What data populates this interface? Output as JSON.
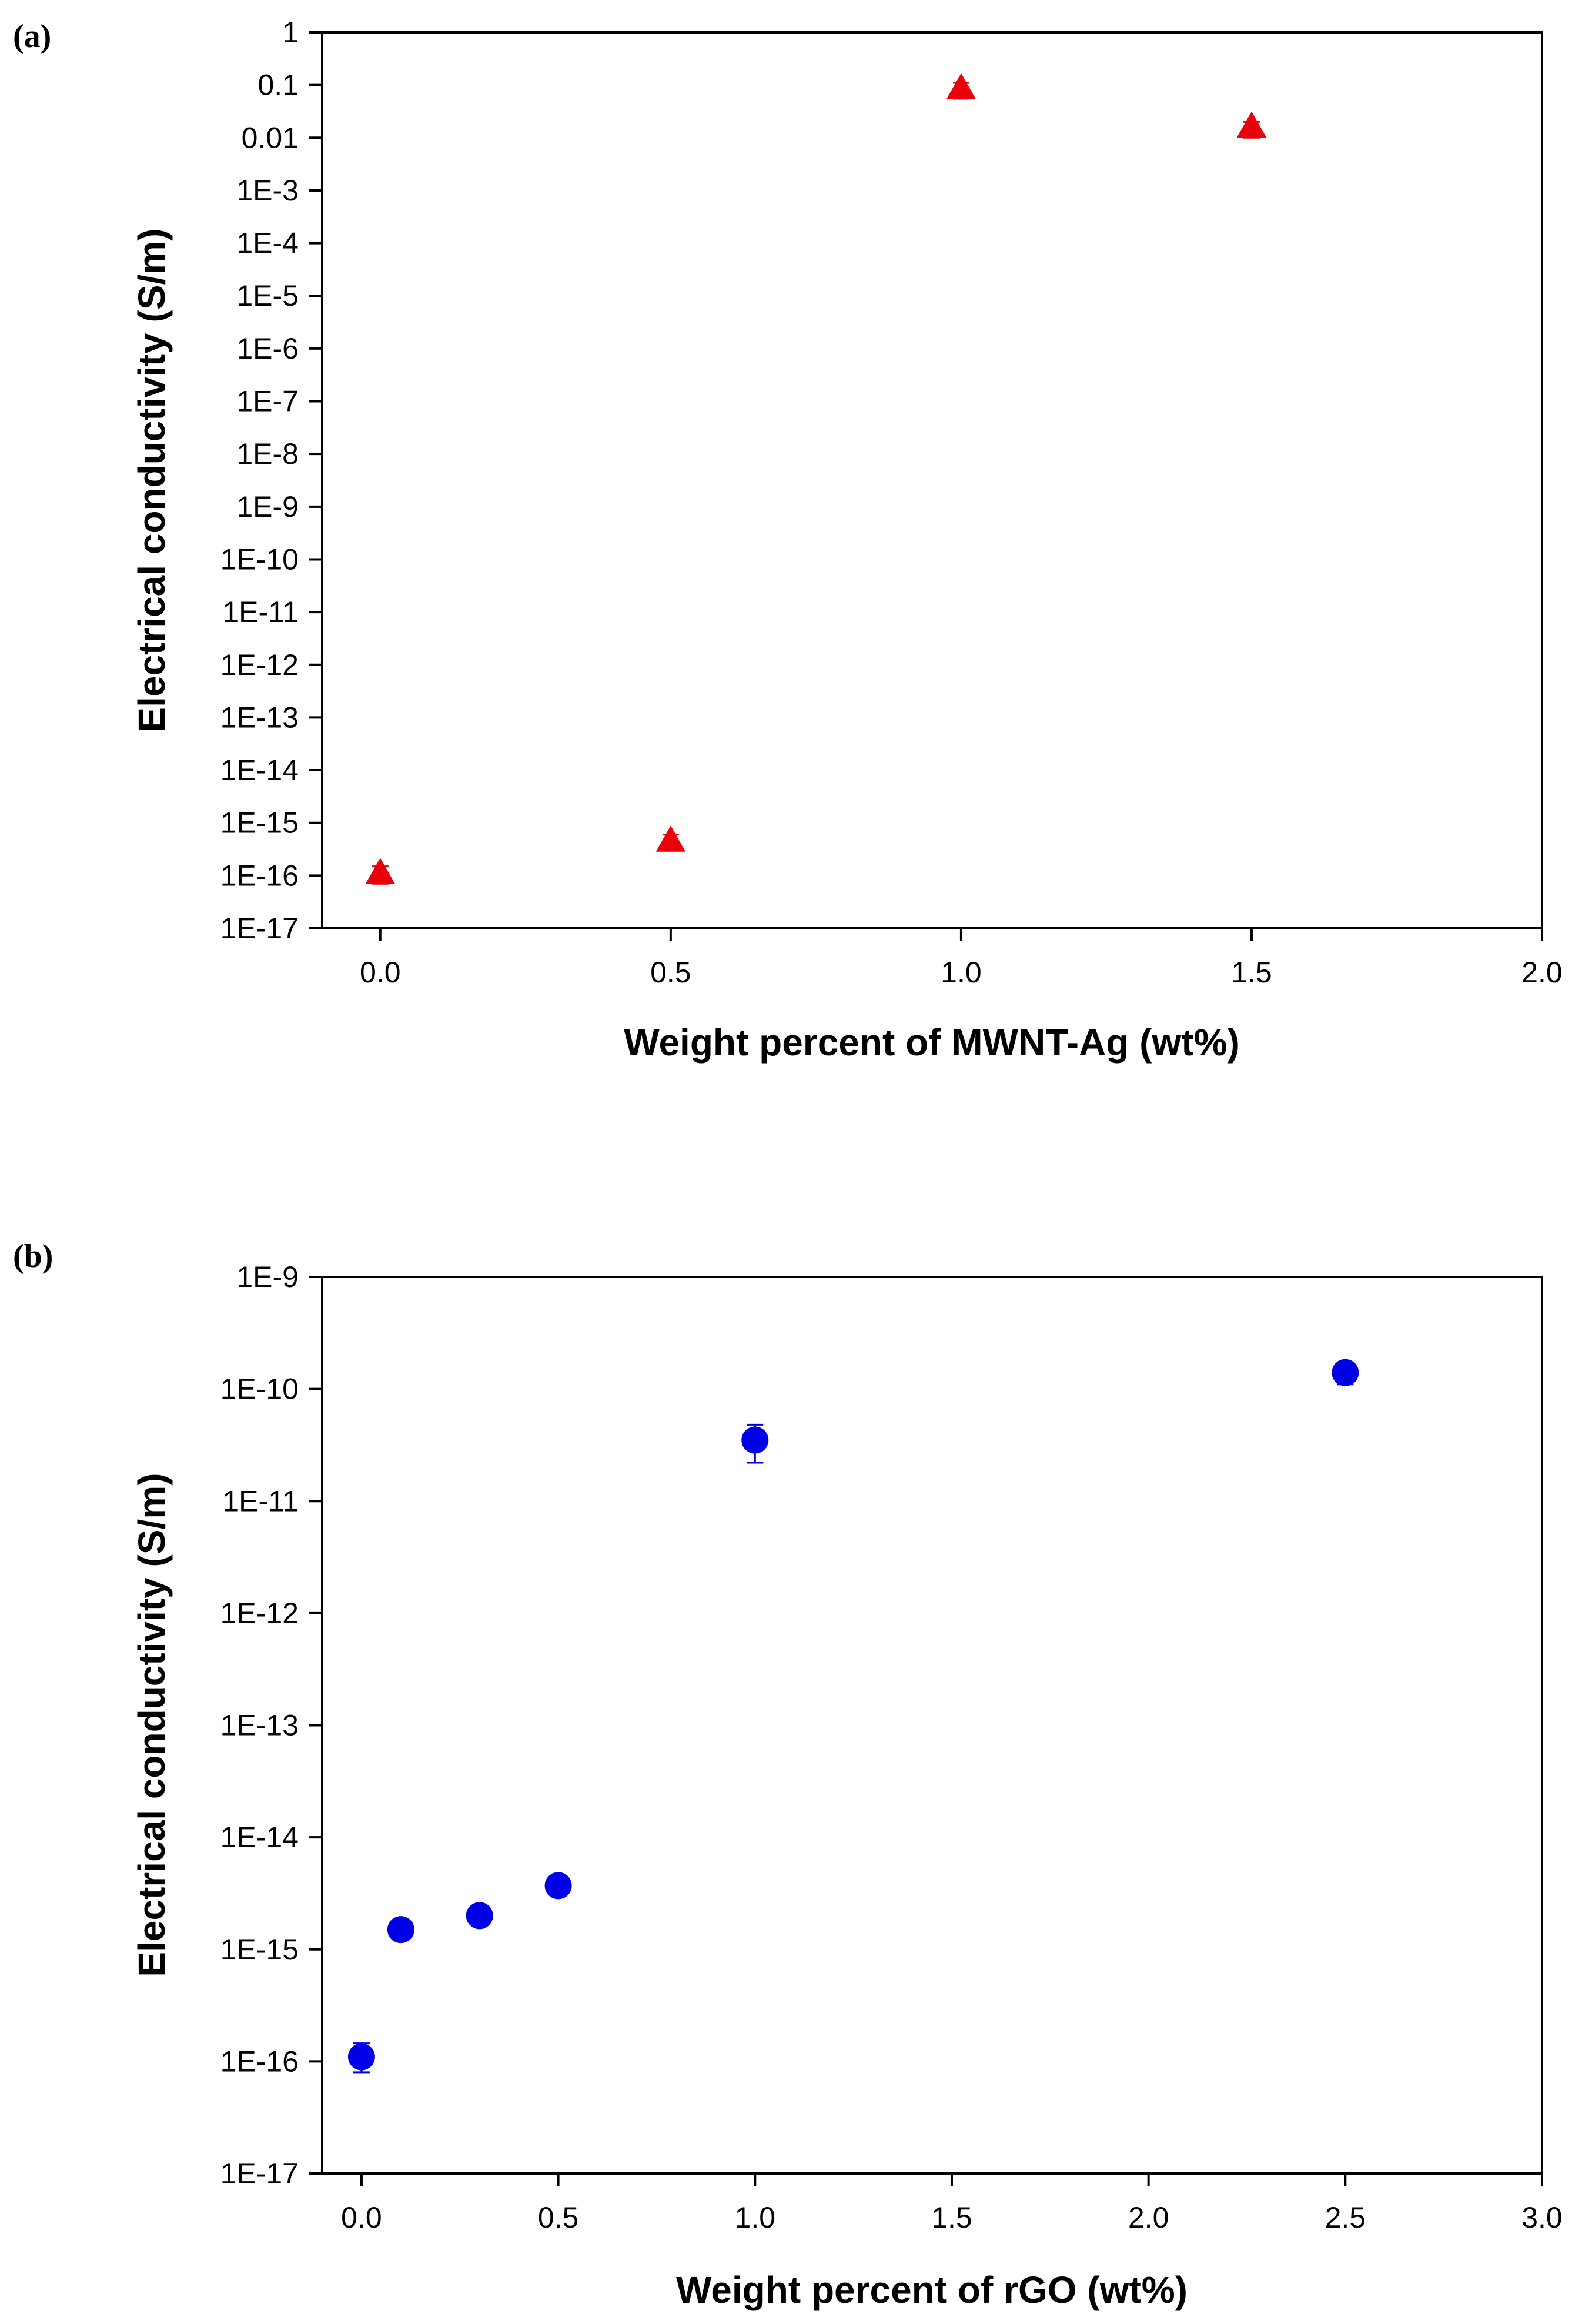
{
  "chart_data": [
    {
      "panel_label": "(a)",
      "type": "scatter",
      "xlabel": "Weight percent of MWNT-Ag (wt%)",
      "ylabel": "Electrical conductivity (S/m)",
      "yscale": "log",
      "xlim": [
        -0.1,
        2.0
      ],
      "ylim_exp": [
        -17,
        0
      ],
      "x_ticks": [
        0.0,
        0.5,
        1.0,
        1.5,
        2.0
      ],
      "x_tick_labels": [
        "0.0",
        "0.5",
        "1.0",
        "1.5",
        "2.0"
      ],
      "y_ticks_exp": [
        0,
        -1,
        -2,
        -3,
        -4,
        -5,
        -6,
        -7,
        -8,
        -9,
        -10,
        -11,
        -12,
        -13,
        -14,
        -15,
        -16,
        -17
      ],
      "y_tick_labels": [
        "1",
        "0.1",
        "0.01",
        "1E-3",
        "1E-4",
        "1E-5",
        "1E-6",
        "1E-7",
        "1E-8",
        "1E-9",
        "1E-10",
        "1E-11",
        "1E-12",
        "1E-13",
        "1E-14",
        "1E-15",
        "1E-16",
        "1E-17"
      ],
      "marker": "triangle",
      "color": "#e8000b",
      "series": [
        {
          "name": "MWNT-Ag",
          "points": [
            {
              "x": 0.0,
              "y": 1.1e-16,
              "err_low": 7e-17,
              "err_high": 1.5e-16
            },
            {
              "x": 0.5,
              "y": 4.5e-16,
              "err_low": 3e-16,
              "err_high": 6e-16
            },
            {
              "x": 1.0,
              "y": 0.085,
              "err_low": 0.055,
              "err_high": 0.11
            },
            {
              "x": 1.5,
              "y": 0.016,
              "err_low": 0.01,
              "err_high": 0.02
            }
          ]
        }
      ]
    },
    {
      "panel_label": "(b)",
      "type": "scatter",
      "xlabel": "Weight percent of rGO (wt%)",
      "ylabel": "Electrical conductivity (S/m)",
      "yscale": "log",
      "xlim": [
        -0.1,
        3.0
      ],
      "ylim_exp": [
        -17,
        -9
      ],
      "x_ticks": [
        0.0,
        0.5,
        1.0,
        1.5,
        2.0,
        2.5,
        3.0
      ],
      "x_tick_labels": [
        "0.0",
        "0.5",
        "1.0",
        "1.5",
        "2.0",
        "2.5",
        "3.0"
      ],
      "y_ticks_exp": [
        -9,
        -10,
        -11,
        -12,
        -13,
        -14,
        -15,
        -16,
        -17
      ],
      "y_tick_labels": [
        "1E-9",
        "1E-10",
        "1E-11",
        "1E-12",
        "1E-13",
        "1E-14",
        "1E-15",
        "1E-16",
        "1E-17"
      ],
      "marker": "circle",
      "color": "#0000e6",
      "series": [
        {
          "name": "rGO",
          "points": [
            {
              "x": 0.0,
              "y": 1.1e-16,
              "err_low": 8e-17,
              "err_high": 1.45e-16
            },
            {
              "x": 0.1,
              "y": 1.5e-15,
              "err_low": 1.3e-15,
              "err_high": 1.7e-15
            },
            {
              "x": 0.3,
              "y": 2e-15,
              "err_low": 1.75e-15,
              "err_high": 2.3e-15
            },
            {
              "x": 0.5,
              "y": 3.7e-15,
              "err_low": 3.3e-15,
              "err_high": 4.1e-15
            },
            {
              "x": 1.0,
              "y": 3.5e-11,
              "err_low": 2.2e-11,
              "err_high": 4.8e-11
            },
            {
              "x": 2.5,
              "y": 1.4e-10,
              "err_low": 1.1e-10,
              "err_high": 1.7e-10
            }
          ]
        }
      ]
    }
  ]
}
